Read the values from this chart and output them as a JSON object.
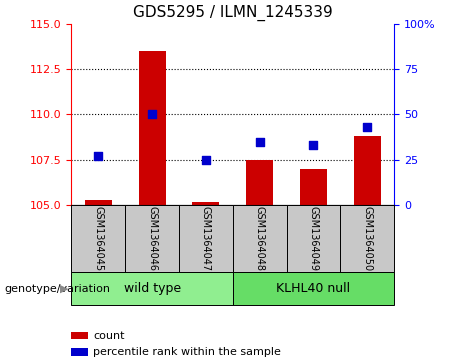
{
  "title": "GDS5295 / ILMN_1245339",
  "samples": [
    "GSM1364045",
    "GSM1364046",
    "GSM1364047",
    "GSM1364048",
    "GSM1364049",
    "GSM1364050"
  ],
  "counts": [
    105.3,
    113.5,
    105.15,
    107.5,
    107.0,
    108.8
  ],
  "percentiles": [
    27,
    50,
    25,
    35,
    33,
    43
  ],
  "ylim_left": [
    105,
    115
  ],
  "ylim_right": [
    0,
    100
  ],
  "yticks_left": [
    105,
    107.5,
    110,
    112.5,
    115
  ],
  "yticks_right": [
    0,
    25,
    50,
    75,
    100
  ],
  "ytick_labels_right": [
    "0",
    "25",
    "50",
    "75",
    "100%"
  ],
  "bar_color": "#cc0000",
  "dot_color": "#0000cc",
  "bar_bottom": 105,
  "legend_count_label": "count",
  "legend_percentile_label": "percentile rank within the sample",
  "genotype_label": "genotype/variation",
  "background_color": "#ffffff",
  "plot_bg": "#ffffff",
  "bar_width": 0.5,
  "dot_size": 35,
  "gray_box_color": "#c8c8c8",
  "wt_color": "#90ee90",
  "kl_color": "#66dd66",
  "title_fontsize": 11,
  "axis_fontsize": 8,
  "sample_fontsize": 7,
  "genotype_fontsize": 9
}
